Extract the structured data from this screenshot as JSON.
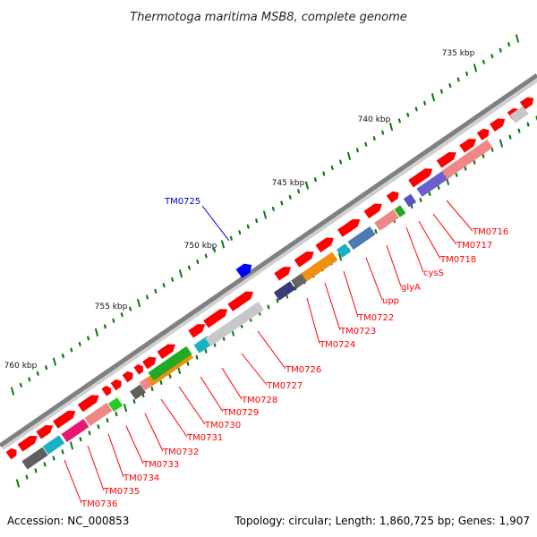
{
  "title": "Thermotoga maritima MSB8, complete genome",
  "accession": "Accession: NC_000853",
  "summary": "Topology: circular; Length: 1,860,725 bp; Genes: 1,907",
  "colors": {
    "backbone": "#808080",
    "forward_gene": "#ff0000",
    "highlight_gene": "#0000ff",
    "tick": "#117711",
    "label_red": "#ff0000",
    "label_blue": "#0000cc"
  },
  "kbp_labels": [
    "735 kbp",
    "740 kbp",
    "745 kbp",
    "750 kbp",
    "755 kbp",
    "760 kbp"
  ],
  "highlighted_gene": "TM0725",
  "gene_labels": [
    "TM0716",
    "TM0717",
    "TM0718",
    "cysS",
    "glyA",
    "upp",
    "TM0722",
    "TM0723",
    "TM0724",
    "TM0726",
    "TM0727",
    "TM0728",
    "TM0729",
    "TM0730",
    "TM0731",
    "TM0732",
    "TM0733",
    "TM0734",
    "TM0735",
    "TM0736"
  ]
}
